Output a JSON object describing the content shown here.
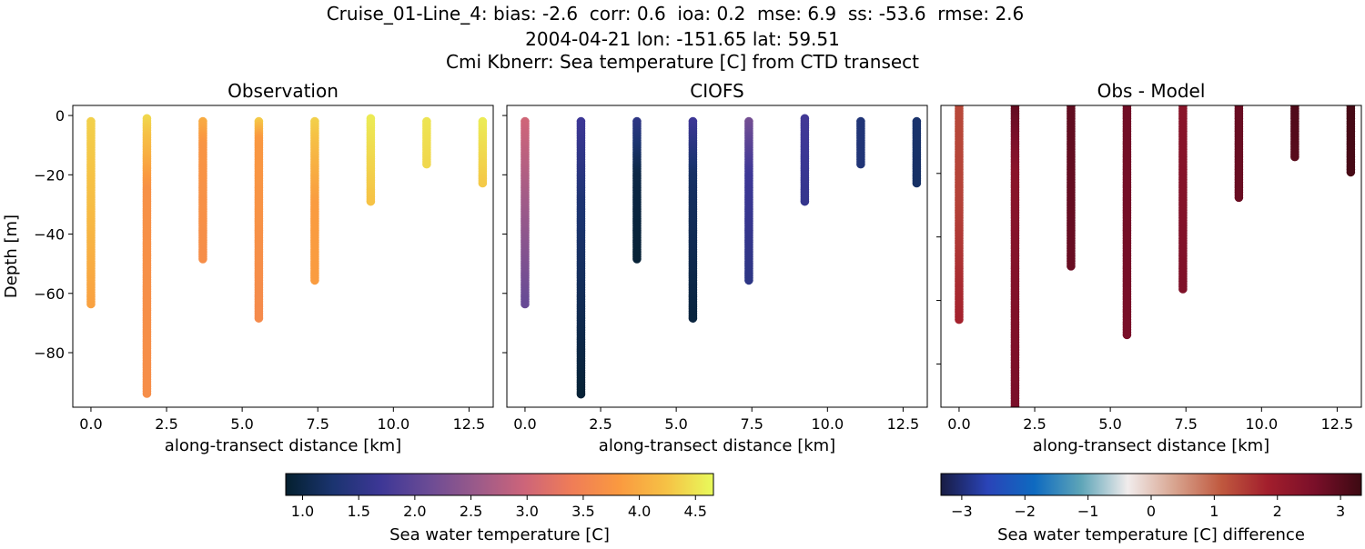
{
  "chart_data": {
    "title_lines": [
      "Cruise_01-Line_4: bias: -2.6  corr: 0.6  ioa: 0.2  mse: 6.9  ss: -53.6  rmse: 2.6",
      "2004-04-21 lon: -151.65 lat: 59.51",
      "Cmi Kbnerr: Sea temperature [C] from CTD transect"
    ],
    "colormaps": {
      "temperature": [
        "#04202f",
        "#1b3470",
        "#3d3796",
        "#6a4b95",
        "#9a5a8a",
        "#cc647a",
        "#ef7c58",
        "#fa9940",
        "#f6c145",
        "#e8fa5b"
      ],
      "difference": [
        "#181c43",
        "#2a44b8",
        "#0e6ac0",
        "#5ea5b8",
        "#f1ecec",
        "#d8a48f",
        "#c0593f",
        "#a21e2c",
        "#7a0f29",
        "#3c0912"
      ]
    },
    "panels": [
      {
        "type": "scatter",
        "title": "Observation",
        "xlabel": "along-transect distance [km]",
        "ylabel": "Depth [m]",
        "xlim": [
          -0.6,
          13.3
        ],
        "ylim": [
          -98.4,
          3.4
        ],
        "xticks": [
          "0.0",
          "2.5",
          "5.0",
          "7.5",
          "10.0",
          "12.5"
        ],
        "yticks": [
          "0",
          "−20",
          "−40",
          "−60",
          "−80"
        ],
        "show_ytick_labels": true,
        "colormap": "temperature",
        "clim": [
          0.85,
          4.66
        ],
        "profiles": [
          {
            "x": 0,
            "top": -2,
            "bottom": -64,
            "values": [
              [
                -2,
                4.35
              ],
              [
                -30,
                4.2
              ],
              [
                -64,
                3.9
              ]
            ]
          },
          {
            "x": 1.85,
            "top": -1,
            "bottom": -94,
            "values": [
              [
                -1,
                4.4
              ],
              [
                -12,
                4.1
              ],
              [
                -25,
                3.7
              ],
              [
                -94,
                3.65
              ]
            ]
          },
          {
            "x": 3.7,
            "top": -2,
            "bottom": -49,
            "values": [
              [
                -2,
                4.0
              ],
              [
                -10,
                3.75
              ],
              [
                -49,
                3.65
              ]
            ]
          },
          {
            "x": 5.55,
            "top": -2,
            "bottom": -69,
            "values": [
              [
                -2,
                4.3
              ],
              [
                -8,
                3.8
              ],
              [
                -69,
                3.6
              ]
            ]
          },
          {
            "x": 7.4,
            "top": -2,
            "bottom": -56,
            "values": [
              [
                -2,
                4.35
              ],
              [
                -15,
                4.1
              ],
              [
                -30,
                3.85
              ],
              [
                -56,
                3.85
              ]
            ]
          },
          {
            "x": 9.25,
            "top": -1,
            "bottom": -29,
            "values": [
              [
                -1,
                4.55
              ],
              [
                -29,
                4.25
              ]
            ]
          },
          {
            "x": 11.1,
            "top": -2,
            "bottom": -17,
            "values": [
              [
                -2,
                4.5
              ],
              [
                -17,
                4.4
              ]
            ]
          },
          {
            "x": 12.95,
            "top": -2,
            "bottom": -23,
            "values": [
              [
                -2,
                4.55
              ],
              [
                -23,
                4.3
              ]
            ]
          }
        ]
      },
      {
        "type": "scatter",
        "title": "CIOFS",
        "xlabel": "along-transect distance [km]",
        "xlim": [
          -0.6,
          13.3
        ],
        "ylim": [
          -98.4,
          3.4
        ],
        "xticks": [
          "0.0",
          "2.5",
          "5.0",
          "7.5",
          "10.0",
          "12.5"
        ],
        "yticks": [
          "0",
          "−20",
          "−40",
          "−60",
          "−80"
        ],
        "show_ytick_labels": false,
        "colormap": "temperature",
        "clim": [
          0.85,
          4.66
        ],
        "profiles": [
          {
            "x": 0,
            "top": -2,
            "bottom": -64,
            "values": [
              [
                -2,
                3.0
              ],
              [
                -64,
                2.1
              ]
            ]
          },
          {
            "x": 1.85,
            "top": -2,
            "bottom": -94,
            "values": [
              [
                -2,
                1.7
              ],
              [
                -30,
                1.3
              ],
              [
                -94,
                0.9
              ]
            ]
          },
          {
            "x": 3.7,
            "top": -2,
            "bottom": -49,
            "values": [
              [
                -2,
                1.5
              ],
              [
                -20,
                1.0
              ],
              [
                -49,
                0.9
              ]
            ]
          },
          {
            "x": 5.55,
            "top": -2,
            "bottom": -69,
            "values": [
              [
                -2,
                1.7
              ],
              [
                -20,
                1.2
              ],
              [
                -69,
                0.95
              ]
            ]
          },
          {
            "x": 7.4,
            "top": -2,
            "bottom": -56,
            "values": [
              [
                -2,
                2.2
              ],
              [
                -20,
                1.7
              ],
              [
                -56,
                1.5
              ]
            ]
          },
          {
            "x": 9.25,
            "top": -1,
            "bottom": -29,
            "values": [
              [
                -1,
                1.75
              ],
              [
                -29,
                1.6
              ]
            ]
          },
          {
            "x": 11.1,
            "top": -2,
            "bottom": -17,
            "values": [
              [
                -2,
                1.35
              ],
              [
                -17,
                1.35
              ]
            ]
          },
          {
            "x": 12.95,
            "top": -2,
            "bottom": -23,
            "values": [
              [
                -2,
                1.25
              ],
              [
                -23,
                1.2
              ]
            ]
          }
        ]
      },
      {
        "type": "scatter",
        "title": "Obs - Model",
        "xlabel": "along-transect distance [km]",
        "xlim": [
          -0.6,
          13.3
        ],
        "ylim": [
          -93.6,
          1.4
        ],
        "xticks": [
          "0.0",
          "2.5",
          "5.0",
          "7.5",
          "10.0",
          "12.5"
        ],
        "yticks": [
          "−20",
          "−40",
          "−60",
          "−80"
        ],
        "show_ytick_labels": false,
        "colormap": "difference",
        "clim": [
          -3.33,
          3.33
        ],
        "profiles": [
          {
            "x": 0,
            "top": 2,
            "bottom": -66,
            "values": [
              [
                2,
                1.3
              ],
              [
                -30,
                1.4
              ],
              [
                -66,
                1.8
              ]
            ]
          },
          {
            "x": 1.85,
            "top": 2,
            "bottom": -96,
            "values": [
              [
                2,
                2.9
              ],
              [
                -20,
                2.3
              ],
              [
                -96,
                2.6
              ]
            ]
          },
          {
            "x": 3.7,
            "top": 2,
            "bottom": -49.5,
            "values": [
              [
                2,
                2.9
              ],
              [
                -49.5,
                2.8
              ]
            ]
          },
          {
            "x": 5.55,
            "top": 2,
            "bottom": -71,
            "values": [
              [
                2,
                2.7
              ],
              [
                -71,
                2.6
              ]
            ]
          },
          {
            "x": 7.4,
            "top": 2,
            "bottom": -57,
            "values": [
              [
                2,
                2.3
              ],
              [
                -57,
                2.5
              ]
            ]
          },
          {
            "x": 9.25,
            "top": 2,
            "bottom": -28,
            "values": [
              [
                2,
                2.8
              ],
              [
                -28,
                2.8
              ]
            ]
          },
          {
            "x": 11.1,
            "top": 2,
            "bottom": -15,
            "values": [
              [
                2,
                3.1
              ],
              [
                -15,
                3.0
              ]
            ]
          },
          {
            "x": 12.95,
            "top": 2,
            "bottom": -20,
            "values": [
              [
                2,
                3.2
              ],
              [
                -20,
                3.2
              ]
            ]
          }
        ]
      }
    ],
    "colorbars": [
      {
        "label": "Sea water temperature [C]",
        "colormap": "temperature",
        "range": [
          0.85,
          4.66
        ],
        "ticks": [
          "1.0",
          "1.5",
          "2.0",
          "2.5",
          "3.0",
          "3.5",
          "4.0",
          "4.5"
        ],
        "tick_values": [
          1.0,
          1.5,
          2.0,
          2.5,
          3.0,
          3.5,
          4.0,
          4.5
        ]
      },
      {
        "label": "Sea water temperature [C] difference",
        "colormap": "difference",
        "range": [
          -3.33,
          3.33
        ],
        "ticks": [
          "−3",
          "−2",
          "−1",
          "0",
          "1",
          "2",
          "3"
        ],
        "tick_values": [
          -3,
          -2,
          -1,
          0,
          1,
          2,
          3
        ]
      }
    ]
  }
}
